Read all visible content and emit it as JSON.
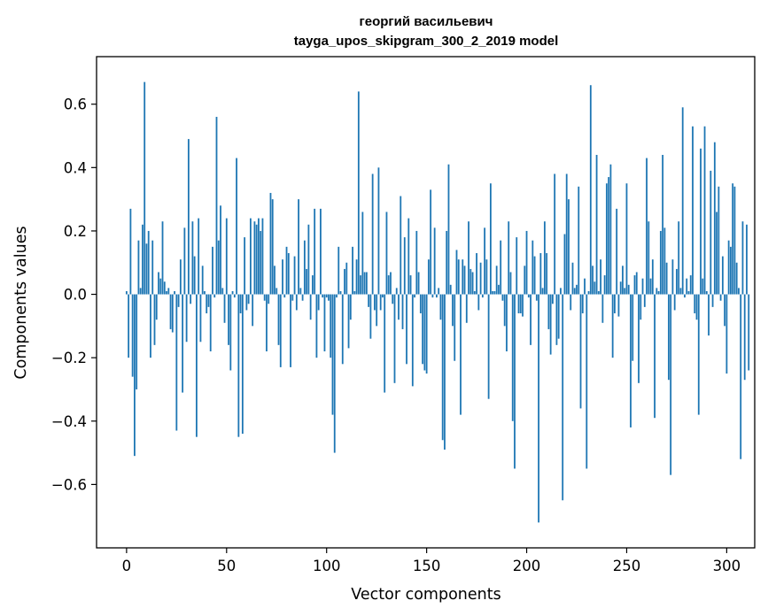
{
  "chart_data": {
    "type": "bar",
    "title": "георгий васильевич",
    "subtitle": "tayga_upos_skipgram_300_2_2019 model",
    "xlabel": "Vector components",
    "ylabel": "Components values",
    "xlim": [
      -15,
      314
    ],
    "ylim": [
      -0.8,
      0.75
    ],
    "xticks": [
      0,
      50,
      100,
      150,
      200,
      250,
      300
    ],
    "yticks": [
      -0.6,
      -0.4,
      -0.2,
      0.0,
      0.2,
      0.4,
      0.6
    ],
    "ytick_labels": [
      "−0.6",
      "−0.4",
      "−0.2",
      "0.0",
      "0.2",
      "0.4",
      "0.6"
    ],
    "bar_color": "#1f77b4",
    "grid": false,
    "legend": "none",
    "values": [
      0.01,
      -0.2,
      0.27,
      -0.26,
      -0.51,
      -0.3,
      0.17,
      0.02,
      0.22,
      0.67,
      0.16,
      0.2,
      -0.2,
      0.17,
      -0.16,
      -0.08,
      0.07,
      0.05,
      0.23,
      0.04,
      0.01,
      0.02,
      -0.11,
      -0.12,
      0.01,
      -0.43,
      -0.04,
      0.11,
      -0.31,
      0.21,
      -0.15,
      0.49,
      -0.03,
      0.23,
      0.12,
      -0.45,
      0.24,
      -0.15,
      0.09,
      0.01,
      -0.06,
      -0.04,
      -0.18,
      0.15,
      -0.01,
      0.56,
      0.17,
      0.28,
      0.02,
      -0.09,
      0.24,
      -0.16,
      -0.24,
      0.01,
      -0.01,
      0.43,
      -0.45,
      -0.06,
      -0.44,
      0.18,
      -0.05,
      -0.03,
      0.24,
      -0.1,
      0.23,
      0.22,
      0.24,
      0.2,
      0.24,
      -0.02,
      -0.18,
      -0.03,
      0.32,
      0.3,
      0.09,
      0.02,
      -0.16,
      -0.23,
      0.11,
      -0.01,
      0.15,
      0.13,
      -0.23,
      -0.02,
      0.12,
      -0.05,
      0.3,
      0.02,
      -0.02,
      0.17,
      0.08,
      0.22,
      -0.08,
      0.06,
      0.27,
      -0.2,
      -0.05,
      0.27,
      -0.01,
      -0.18,
      -0.01,
      -0.02,
      -0.2,
      -0.38,
      -0.5,
      -0.01,
      0.15,
      0.01,
      -0.22,
      0.08,
      0.1,
      -0.17,
      -0.08,
      0.15,
      0.01,
      0.11,
      0.64,
      0.06,
      0.26,
      0.07,
      0.07,
      -0.04,
      -0.14,
      0.38,
      -0.05,
      -0.1,
      0.4,
      -0.05,
      -0.01,
      -0.31,
      0.26,
      0.06,
      0.07,
      -0.03,
      -0.28,
      0.02,
      -0.08,
      0.31,
      -0.11,
      0.18,
      -0.22,
      0.24,
      0.06,
      -0.29,
      -0.01,
      0.2,
      0.07,
      -0.06,
      -0.22,
      -0.24,
      -0.25,
      0.11,
      0.33,
      -0.01,
      0.21,
      -0.01,
      0.02,
      -0.08,
      -0.46,
      -0.49,
      0.2,
      0.41,
      0.03,
      -0.1,
      -0.21,
      0.14,
      0.11,
      -0.38,
      0.11,
      0.09,
      -0.09,
      0.23,
      0.08,
      0.07,
      0.01,
      0.13,
      -0.05,
      0.1,
      -0.01,
      0.21,
      0.11,
      -0.33,
      0.35,
      0.01,
      0.01,
      0.09,
      0.03,
      0.17,
      -0.02,
      -0.1,
      -0.18,
      0.23,
      0.07,
      -0.4,
      -0.55,
      0.18,
      -0.06,
      -0.06,
      -0.07,
      0.09,
      0.2,
      -0.01,
      -0.16,
      0.17,
      0.12,
      -0.02,
      -0.72,
      0.13,
      0.02,
      0.23,
      0.13,
      -0.11,
      -0.19,
      -0.03,
      0.38,
      -0.16,
      -0.14,
      0.02,
      -0.65,
      0.19,
      0.38,
      0.3,
      -0.05,
      0.1,
      0.02,
      0.03,
      0.34,
      -0.36,
      -0.06,
      0.05,
      -0.55,
      0.01,
      0.66,
      0.09,
      0.04,
      0.44,
      0.01,
      0.11,
      -0.09,
      0.06,
      0.35,
      0.37,
      0.41,
      -0.2,
      -0.06,
      0.27,
      -0.07,
      0.04,
      0.09,
      0.02,
      0.35,
      0.03,
      -0.42,
      -0.21,
      0.06,
      0.07,
      -0.28,
      -0.08,
      0.05,
      -0.04,
      0.43,
      0.23,
      0.05,
      0.11,
      -0.39,
      0.02,
      0.01,
      0.2,
      0.44,
      0.21,
      0.1,
      -0.27,
      -0.57,
      0.11,
      -0.05,
      0.08,
      0.23,
      0.02,
      0.59,
      -0.01,
      0.05,
      0.01,
      0.06,
      0.53,
      -0.06,
      -0.08,
      -0.38,
      0.46,
      0.05,
      0.53,
      0.01,
      -0.13,
      0.39,
      -0.04,
      0.48,
      0.26,
      0.34,
      -0.02,
      0.12,
      -0.1,
      -0.25,
      0.17,
      0.15,
      0.35,
      0.34,
      0.1,
      0.02,
      -0.52,
      0.23,
      -0.27,
      0.22,
      -0.24
    ]
  }
}
